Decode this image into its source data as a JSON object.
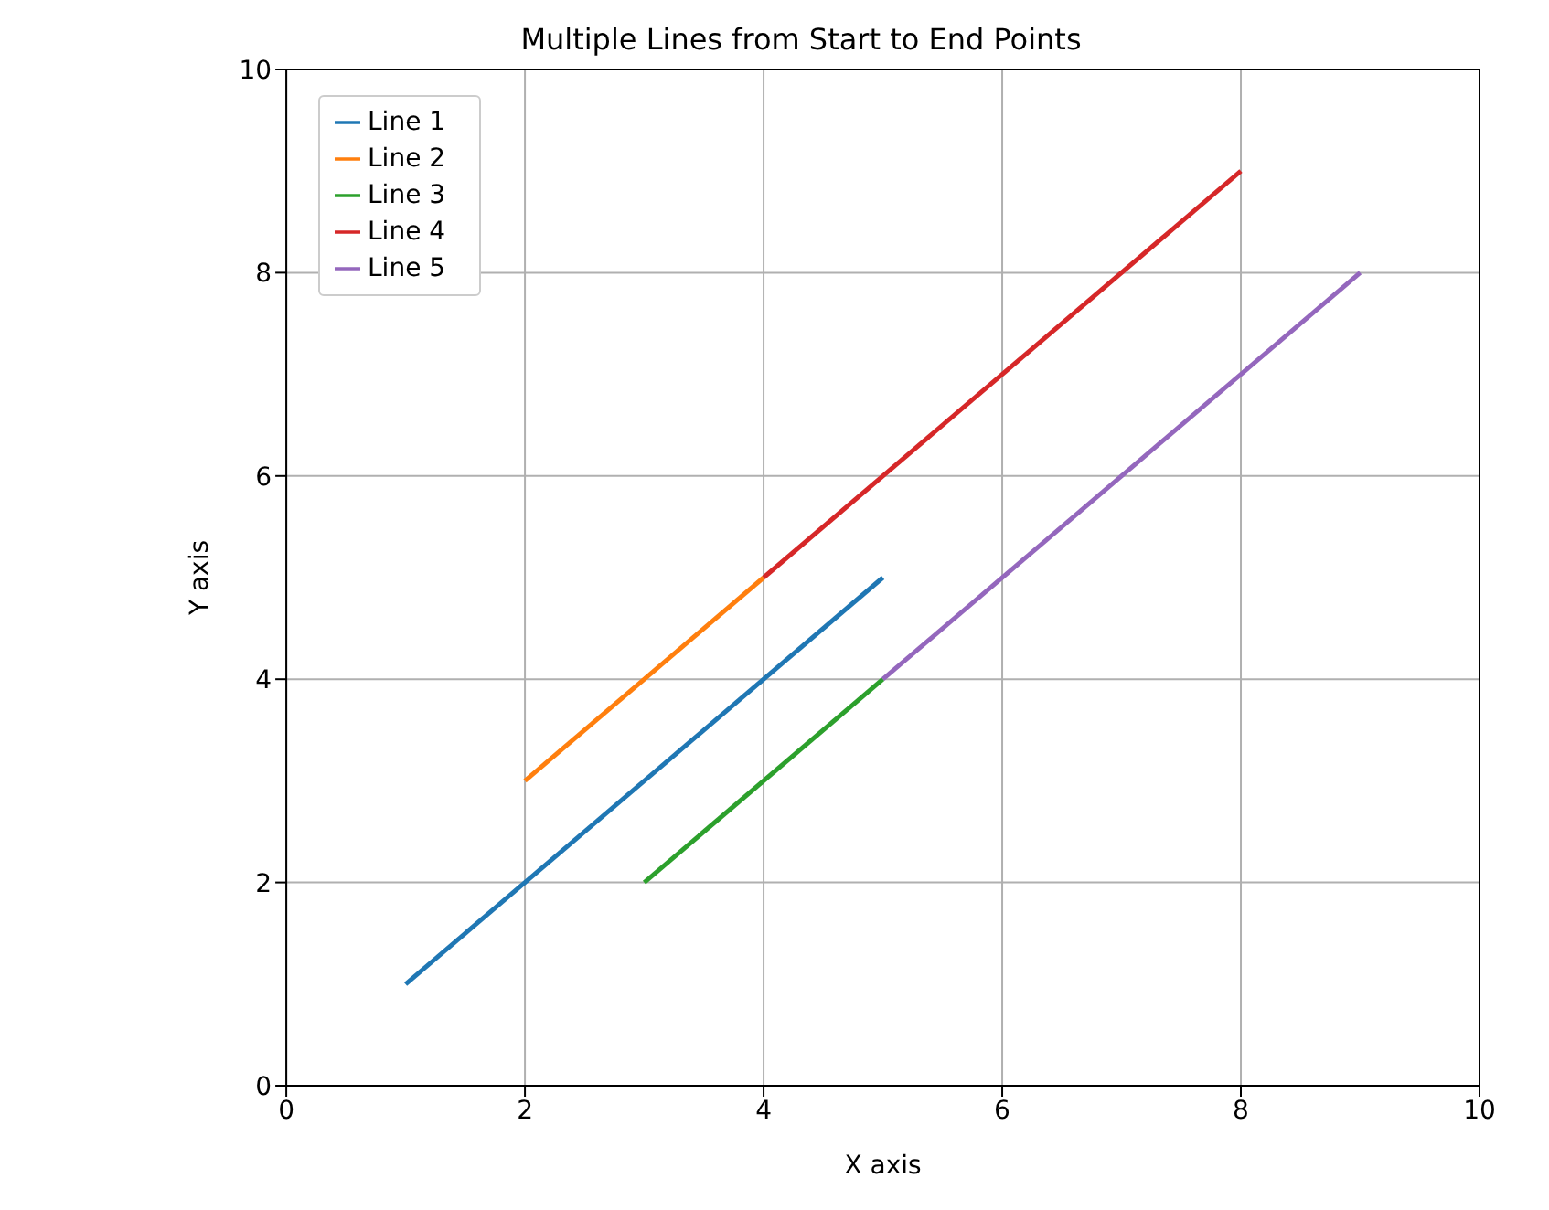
{
  "chart_data": {
    "type": "line",
    "title": "Multiple Lines from Start to End Points",
    "xlabel": "X axis",
    "ylabel": "Y axis",
    "series": [
      {
        "name": "Line 1",
        "color": "#1f77b4",
        "x": [
          1,
          5
        ],
        "values": [
          1,
          5
        ]
      },
      {
        "name": "Line 2",
        "color": "#ff7f0e",
        "x": [
          2,
          4
        ],
        "values": [
          3,
          5
        ]
      },
      {
        "name": "Line 3",
        "color": "#2ca02c",
        "x": [
          3,
          5
        ],
        "values": [
          2,
          4
        ]
      },
      {
        "name": "Line 4",
        "color": "#d62728",
        "x": [
          4,
          8
        ],
        "values": [
          5,
          9
        ]
      },
      {
        "name": "Line 5",
        "color": "#9467bd",
        "x": [
          5,
          9
        ],
        "values": [
          4,
          8
        ]
      }
    ],
    "xlim": [
      0,
      10
    ],
    "xticks": [
      0,
      2,
      4,
      6,
      8,
      10
    ],
    "ylim": [
      0,
      10
    ],
    "yticks": [
      0,
      2,
      4,
      6,
      8,
      10
    ],
    "grid": true,
    "legend": "top left",
    "marker": "none",
    "line_style": "solid"
  }
}
